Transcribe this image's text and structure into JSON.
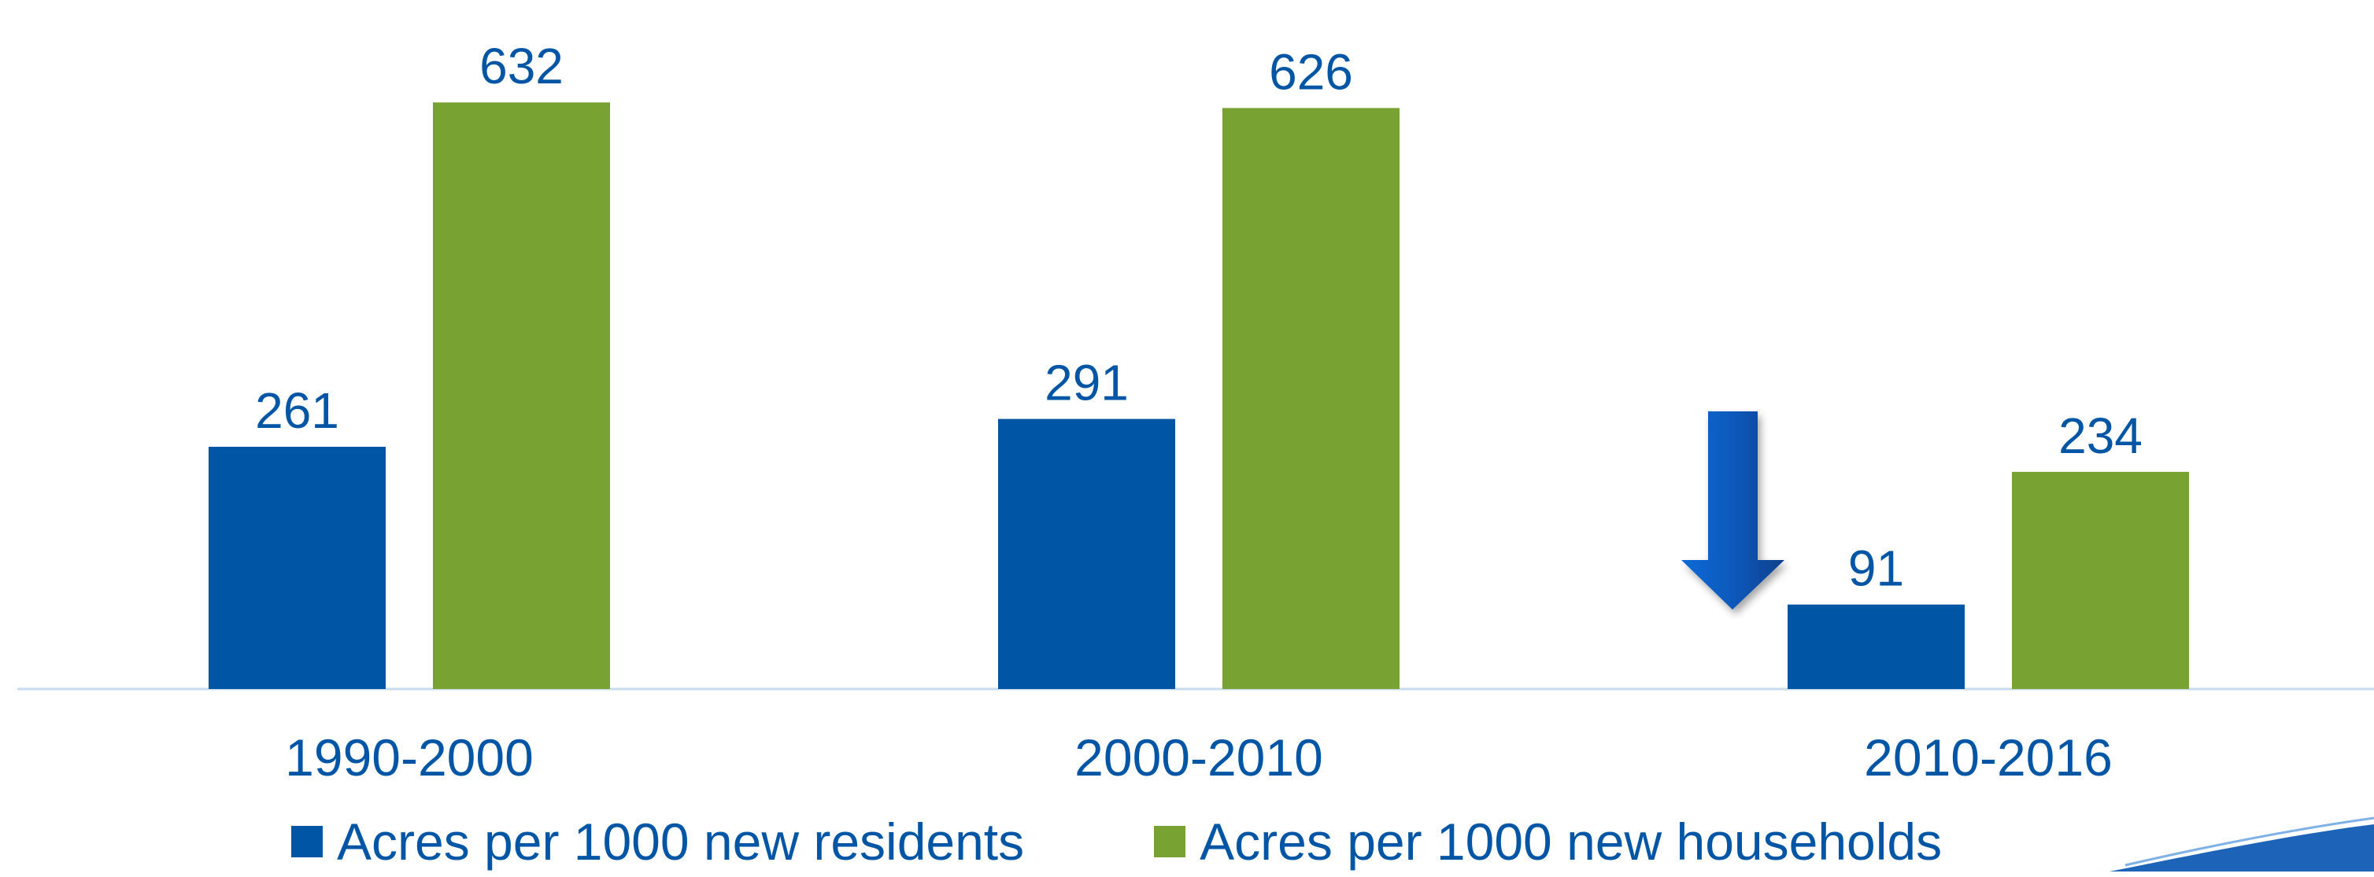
{
  "chart_data": {
    "type": "bar",
    "categories": [
      "1990-2000",
      "2000-2010",
      "2010-2016"
    ],
    "series": [
      {
        "name": "Acres per 1000 new residents",
        "values": [
          261,
          291,
          91
        ],
        "color": "#0055a4"
      },
      {
        "name": "Acres per 1000 new households",
        "values": [
          632,
          626,
          234
        ],
        "color": "#78a232"
      }
    ],
    "ylim": [
      0,
      700
    ],
    "grid": false,
    "legend": "bottom",
    "label_color": "#0055a4",
    "axis_color": "#c9dbee",
    "annotations": [
      {
        "type": "down-arrow-icon",
        "category": "2010-2016"
      }
    ]
  }
}
